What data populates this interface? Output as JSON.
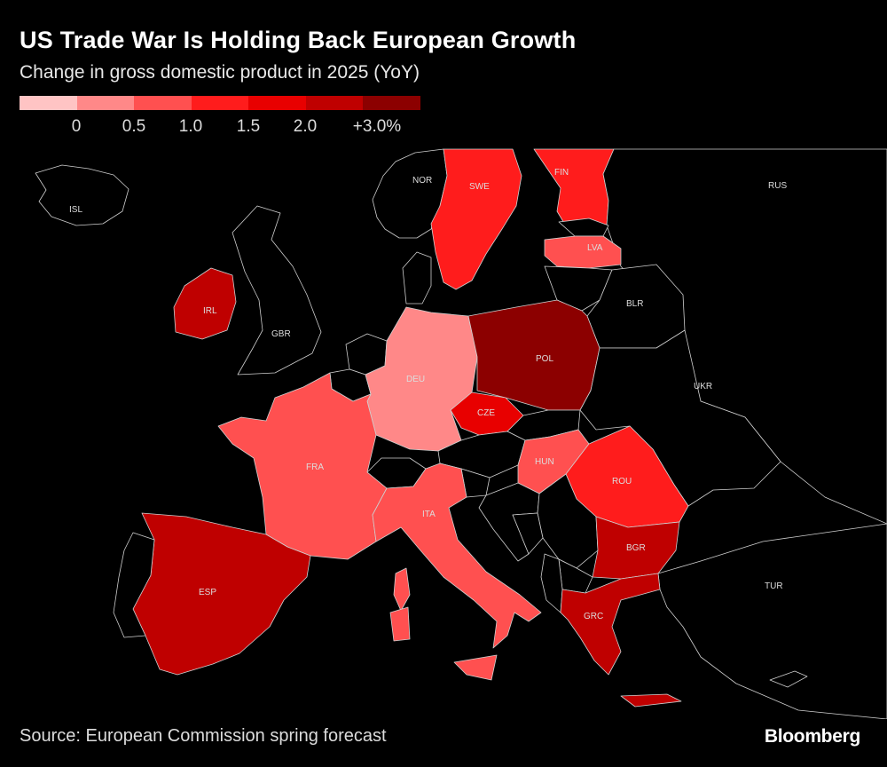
{
  "title": "US Trade War Is Holding Back European Growth",
  "subtitle": "Change in gross domestic product in 2025 (YoY)",
  "legend": {
    "bins": [
      "#ffc4c4",
      "#ff8888",
      "#ff5050",
      "#ff1c1c",
      "#e80000",
      "#bf0000",
      "#8c0000"
    ],
    "ticks": [
      "0",
      "0.5",
      "1.0",
      "1.5",
      "2.0",
      "+3.0%"
    ]
  },
  "colors": {
    "background": "#000000",
    "no_data": "#000000",
    "border": "#cfcfcf"
  },
  "countries": [
    {
      "code": "ISL",
      "bin": null
    },
    {
      "code": "NOR",
      "bin": null
    },
    {
      "code": "SWE",
      "bin": 3
    },
    {
      "code": "FIN",
      "bin": 3
    },
    {
      "code": "RUS",
      "bin": null
    },
    {
      "code": "LVA",
      "bin": 2
    },
    {
      "code": "IRL",
      "bin": 5
    },
    {
      "code": "GBR",
      "bin": null
    },
    {
      "code": "BLR",
      "bin": null
    },
    {
      "code": "POL",
      "bin": 6
    },
    {
      "code": "DEU",
      "bin": 1
    },
    {
      "code": "UKR",
      "bin": null
    },
    {
      "code": "CZE",
      "bin": 4
    },
    {
      "code": "FRA",
      "bin": 2
    },
    {
      "code": "HUN",
      "bin": 2
    },
    {
      "code": "ROU",
      "bin": 3
    },
    {
      "code": "ITA",
      "bin": 2
    },
    {
      "code": "BGR",
      "bin": 5
    },
    {
      "code": "ESP",
      "bin": 5
    },
    {
      "code": "TUR",
      "bin": null
    },
    {
      "code": "GRC",
      "bin": 5
    }
  ],
  "source": "Source: European Commission spring forecast",
  "brand": "Bloomberg"
}
